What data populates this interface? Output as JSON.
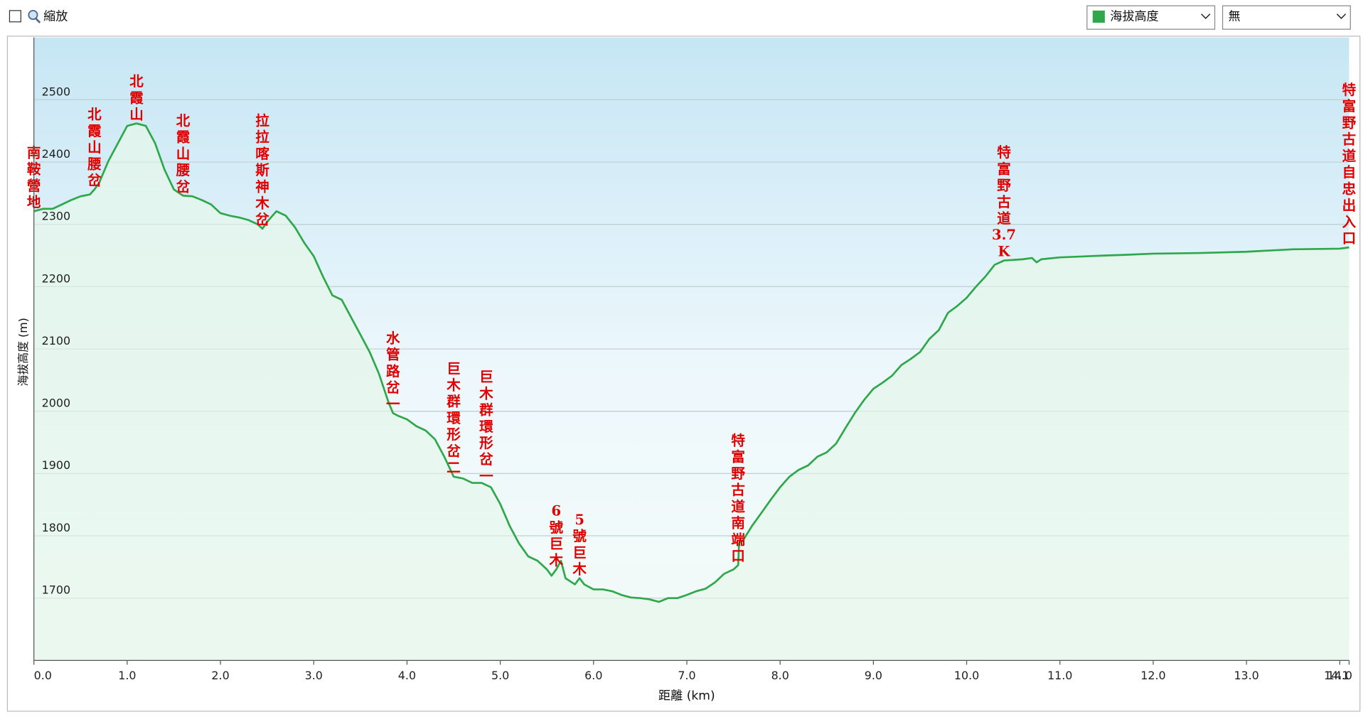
{
  "controls": {
    "zoom_checkbox": "縮放",
    "metric_select": "海拔高度",
    "secondary_select": "無"
  },
  "chart_data": {
    "type": "line",
    "xlabel": "距離 (km)",
    "ylabel": "海拔高度 (m)",
    "color": "#2ea84a",
    "grid": true,
    "xlim": [
      0,
      14.1
    ],
    "ylim": [
      1600,
      2600
    ],
    "xticks": [
      {
        "value": 0,
        "label": "0.0"
      },
      {
        "value": 1,
        "label": "1.0"
      },
      {
        "value": 2,
        "label": "2.0"
      },
      {
        "value": 3,
        "label": "3.0"
      },
      {
        "value": 4,
        "label": "4.0"
      },
      {
        "value": 5,
        "label": "5.0"
      },
      {
        "value": 6,
        "label": "6.0"
      },
      {
        "value": 7,
        "label": "7.0"
      },
      {
        "value": 8,
        "label": "8.0"
      },
      {
        "value": 9,
        "label": "9.0"
      },
      {
        "value": 10,
        "label": "10.0"
      },
      {
        "value": 11,
        "label": "11.0"
      },
      {
        "value": 12,
        "label": "12.0"
      },
      {
        "value": 13,
        "label": "13.0"
      },
      {
        "value": 14,
        "label": "14.0"
      },
      14.1
    ],
    "yticks": [
      1700,
      1800,
      1900,
      2000,
      2100,
      2200,
      2300,
      2400,
      2500
    ],
    "x": [
      0,
      0.1,
      0.2,
      0.3,
      0.4,
      0.5,
      0.6,
      0.65,
      0.7,
      0.8,
      0.9,
      1.0,
      1.1,
      1.2,
      1.3,
      1.4,
      1.5,
      1.6,
      1.7,
      1.8,
      1.9,
      2.0,
      2.1,
      2.2,
      2.3,
      2.4,
      2.45,
      2.5,
      2.6,
      2.7,
      2.8,
      2.9,
      3.0,
      3.1,
      3.2,
      3.3,
      3.4,
      3.5,
      3.6,
      3.7,
      3.8,
      3.85,
      3.9,
      4.0,
      4.1,
      4.2,
      4.3,
      4.4,
      4.5,
      4.6,
      4.7,
      4.8,
      4.9,
      5.0,
      5.1,
      5.2,
      5.3,
      5.4,
      5.5,
      5.55,
      5.6,
      5.65,
      5.7,
      5.8,
      5.85,
      5.9,
      6.0,
      6.1,
      6.2,
      6.3,
      6.4,
      6.5,
      6.6,
      6.7,
      6.8,
      6.9,
      7.0,
      7.1,
      7.2,
      7.3,
      7.4,
      7.5,
      7.55,
      7.56,
      7.6,
      7.7,
      7.8,
      7.9,
      8.0,
      8.1,
      8.2,
      8.3,
      8.4,
      8.5,
      8.6,
      8.7,
      8.8,
      8.9,
      9.0,
      9.1,
      9.2,
      9.3,
      9.4,
      9.5,
      9.6,
      9.7,
      9.8,
      9.9,
      10.0,
      10.1,
      10.2,
      10.3,
      10.4,
      10.5,
      10.6,
      10.7,
      10.75,
      10.8,
      11.0,
      11.5,
      11.7,
      12.0,
      12.5,
      13.0,
      13.5,
      14.0,
      14.1
    ],
    "values": [
      2321,
      2325,
      2325,
      2332,
      2339,
      2345,
      2348,
      2356,
      2367,
      2402,
      2430,
      2458,
      2462,
      2458,
      2430,
      2388,
      2356,
      2346,
      2345,
      2339,
      2332,
      2318,
      2314,
      2311,
      2307,
      2300,
      2293,
      2304,
      2321,
      2314,
      2295,
      2270,
      2249,
      2216,
      2186,
      2179,
      2151,
      2123,
      2095,
      2060,
      2015,
      1997,
      1993,
      1987,
      1976,
      1969,
      1955,
      1927,
      1895,
      1892,
      1885,
      1885,
      1878,
      1851,
      1816,
      1788,
      1767,
      1760,
      1746,
      1736,
      1746,
      1760,
      1732,
      1722,
      1732,
      1722,
      1714,
      1714,
      1711,
      1705,
      1701,
      1700,
      1698,
      1694,
      1700,
      1700,
      1705,
      1711,
      1715,
      1725,
      1739,
      1746,
      1753,
      1788,
      1792,
      1816,
      1837,
      1858,
      1878,
      1895,
      1906,
      1913,
      1927,
      1934,
      1948,
      1973,
      1997,
      2018,
      2036,
      2046,
      2057,
      2074,
      2084,
      2095,
      2116,
      2130,
      2158,
      2169,
      2182,
      2200,
      2216,
      2235,
      2242,
      2243,
      2244,
      2246,
      2239,
      2244,
      2247,
      2250,
      2251,
      2253,
      2254,
      2256,
      2260,
      2261,
      2263
    ],
    "waypoints": [
      {
        "label": "南鞍營地",
        "x": 0
      },
      {
        "label": "北霞山腰岔",
        "x": 0.65
      },
      {
        "label": "北霞山",
        "x": 1.1
      },
      {
        "label": "北霞山腰岔",
        "x": 1.6
      },
      {
        "label": "拉拉喀斯神木岔",
        "x": 2.45
      },
      {
        "label": "水管路岔一",
        "x": 3.85
      },
      {
        "label": "巨木群環形岔二",
        "x": 4.5
      },
      {
        "label": "巨木群環形岔一",
        "x": 4.85
      },
      {
        "label": "6號巨木",
        "x": 5.6
      },
      {
        "label": "5號巨木",
        "x": 5.85
      },
      {
        "label": "特富野古道南端口",
        "x": 7.55
      },
      {
        "label": "特富野古道3.7K",
        "x": 10.4
      },
      {
        "label": "特富野古道自忠出入口",
        "x": 14.1
      }
    ]
  }
}
